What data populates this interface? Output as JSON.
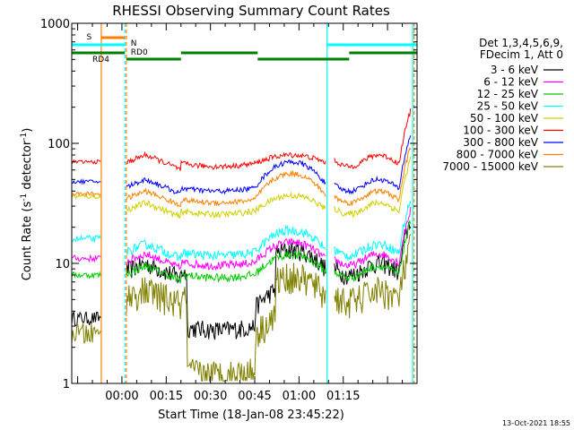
{
  "chart_data": {
    "type": "line",
    "title": "RHESSI Observing Summary Count Rates",
    "xlabel": "Start Time (18-Jan-08 23:45:22)",
    "ylabel_main": "Count Rate (s",
    "ylabel_sup1": "-1",
    "ylabel_mid": " detector",
    "ylabel_sup2": "-1",
    "ylabel_end": ")",
    "ylog": true,
    "ylim": [
      1,
      1000
    ],
    "xlim_min": [
      -17,
      100
    ],
    "x_ticks": [
      {
        "min": 0,
        "label": "00:00"
      },
      {
        "min": 15,
        "label": "00:15"
      },
      {
        "min": 30,
        "label": "00:30"
      },
      {
        "min": 45,
        "label": "00:45"
      },
      {
        "min": 60,
        "label": "01:00"
      },
      {
        "min": 75,
        "label": "01:15"
      }
    ],
    "y_ticks": [
      {
        "val": 1,
        "label": "1"
      },
      {
        "val": 10,
        "label": "10"
      },
      {
        "val": 100,
        "label": "100"
      },
      {
        "val": 1000,
        "label": "1000"
      }
    ],
    "legend_header": [
      "Det 1,3,4,5,6,9,",
      "FDecim 1, Att 0"
    ],
    "series": [
      {
        "name": "3 - 6 keV",
        "color": "#000000"
      },
      {
        "name": "6 - 12 keV",
        "color": "#ff00ff"
      },
      {
        "name": "12 - 25 keV",
        "color": "#00cc00"
      },
      {
        "name": "25 - 50 keV",
        "color": "#00ffff"
      },
      {
        "name": "50 - 100 keV",
        "color": "#d0d000"
      },
      {
        "name": "100 - 300 keV",
        "color": "#ff0000"
      },
      {
        "name": "300 - 800 keV",
        "color": "#0000ff"
      },
      {
        "name": "800 - 7000 keV",
        "color": "#ff8000"
      },
      {
        "name": "7000 - 15000 keV",
        "color": "#808000"
      }
    ],
    "flags": [
      {
        "label": "S",
        "color": "#ff8000",
        "start": -7,
        "end": 1
      },
      {
        "label": "N",
        "color": "#00ffff",
        "start": -17,
        "end": 1
      },
      {
        "label": "N",
        "color": "#00ffff",
        "start": 69,
        "end": 100
      },
      {
        "label": "RD0",
        "color": "#008000",
        "start": 1,
        "end": 1.5
      },
      {
        "label": "RD4",
        "color": "#008000",
        "start": -17,
        "end": 1
      }
    ],
    "flag_label_S": "S",
    "flag_label_N": "N",
    "flag_label_RD0": "RD0",
    "flag_label_RD4": "RD4",
    "timestamp": "13-Oct-2021 18:55"
  }
}
